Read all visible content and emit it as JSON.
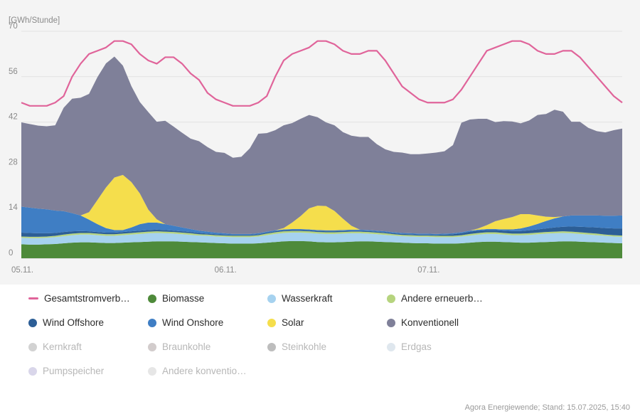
{
  "chart_data": {
    "type": "area",
    "ylabel": "[GWh/Stunde]",
    "ylim": [
      0,
      70
    ],
    "yticks": [
      0,
      14,
      28,
      42,
      56,
      70
    ],
    "x_tick_labels": [
      {
        "index": 0,
        "label": "05.11."
      },
      {
        "index": 24,
        "label": "06.11."
      },
      {
        "index": 48,
        "label": "07.11."
      }
    ],
    "hours": 72,
    "stack_order": [
      "Biomasse",
      "Wasserkraft",
      "Andere erneuerbare",
      "Wind Offshore",
      "Wind Onshore",
      "Solar",
      "Konventionell"
    ],
    "series": [
      {
        "name": "Biomasse",
        "color": "#4e8a3a",
        "values": [
          4.3,
          4.2,
          4.2,
          4.3,
          4.4,
          4.6,
          4.8,
          4.9,
          4.9,
          4.8,
          4.7,
          4.7,
          4.8,
          4.9,
          5.0,
          5.1,
          5.2,
          5.2,
          5.2,
          5.1,
          5.0,
          4.9,
          4.8,
          4.7,
          4.6,
          4.5,
          4.5,
          4.5,
          4.6,
          4.8,
          5.0,
          5.2,
          5.3,
          5.3,
          5.2,
          5.0,
          4.9,
          4.9,
          5.0,
          5.1,
          5.2,
          5.2,
          5.1,
          5.0,
          4.9,
          4.8,
          4.7,
          4.6,
          4.6,
          4.5,
          4.5,
          4.5,
          4.6,
          4.8,
          5.0,
          5.1,
          5.1,
          5.0,
          4.9,
          4.8,
          4.8,
          4.9,
          5.0,
          5.1,
          5.2,
          5.2,
          5.1,
          5.0,
          4.9,
          4.8,
          4.7,
          4.6
        ]
      },
      {
        "name": "Wasserkraft",
        "color": "#a6d2ef",
        "values": [
          2.0,
          2.0,
          2.0,
          2.0,
          2.1,
          2.2,
          2.3,
          2.4,
          2.4,
          2.3,
          2.2,
          2.2,
          2.3,
          2.4,
          2.5,
          2.6,
          2.6,
          2.5,
          2.4,
          2.3,
          2.2,
          2.1,
          2.1,
          2.0,
          2.0,
          2.0,
          2.0,
          2.0,
          2.1,
          2.3,
          2.5,
          2.6,
          2.6,
          2.6,
          2.6,
          2.6,
          2.6,
          2.6,
          2.6,
          2.6,
          2.5,
          2.4,
          2.3,
          2.2,
          2.1,
          2.0,
          2.0,
          2.0,
          2.0,
          2.0,
          2.0,
          2.0,
          2.1,
          2.2,
          2.3,
          2.4,
          2.4,
          2.3,
          2.2,
          2.3,
          2.4,
          2.5,
          2.6,
          2.6,
          2.6,
          2.5,
          2.4,
          2.3,
          2.2,
          2.1,
          2.0,
          2.0
        ]
      },
      {
        "name": "Andere erneuerbare",
        "color": "#b6d47e",
        "values": [
          0.4,
          0.4,
          0.4,
          0.4,
          0.4,
          0.5,
          0.5,
          0.5,
          0.5,
          0.5,
          0.5,
          0.5,
          0.5,
          0.5,
          0.5,
          0.5,
          0.5,
          0.5,
          0.5,
          0.5,
          0.5,
          0.4,
          0.4,
          0.4,
          0.4,
          0.4,
          0.4,
          0.4,
          0.4,
          0.5,
          0.5,
          0.5,
          0.5,
          0.5,
          0.5,
          0.5,
          0.5,
          0.5,
          0.5,
          0.5,
          0.5,
          0.5,
          0.5,
          0.5,
          0.4,
          0.4,
          0.4,
          0.4,
          0.4,
          0.4,
          0.4,
          0.4,
          0.4,
          0.5,
          0.5,
          0.5,
          0.5,
          0.5,
          0.5,
          0.5,
          0.5,
          0.5,
          0.5,
          0.5,
          0.5,
          0.5,
          0.5,
          0.5,
          0.5,
          0.4,
          0.4,
          0.4
        ]
      },
      {
        "name": "Wind Offshore",
        "color": "#2c5e96",
        "values": [
          1.2,
          1.2,
          1.1,
          1.0,
          0.9,
          0.8,
          0.7,
          0.6,
          0.5,
          0.5,
          0.5,
          0.5,
          0.5,
          0.5,
          0.5,
          0.5,
          0.5,
          0.5,
          0.4,
          0.4,
          0.4,
          0.4,
          0.3,
          0.3,
          0.3,
          0.3,
          0.3,
          0.3,
          0.3,
          0.3,
          0.3,
          0.3,
          0.3,
          0.3,
          0.3,
          0.3,
          0.3,
          0.3,
          0.3,
          0.3,
          0.3,
          0.3,
          0.3,
          0.3,
          0.3,
          0.3,
          0.3,
          0.3,
          0.3,
          0.3,
          0.4,
          0.5,
          0.6,
          0.7,
          0.7,
          0.7,
          0.7,
          0.7,
          0.8,
          0.8,
          0.9,
          1.0,
          1.1,
          1.3,
          1.4,
          1.6,
          1.7,
          1.8,
          1.9,
          2.0,
          2.1,
          2.2
        ]
      },
      {
        "name": "Wind Onshore",
        "color": "#3f7ec4",
        "values": [
          8.0,
          7.8,
          7.6,
          7.4,
          6.9,
          6.4,
          5.6,
          4.8,
          3.6,
          2.4,
          1.4,
          0.8,
          0.6,
          1.2,
          2.0,
          2.3,
          2.2,
          1.8,
          1.5,
          1.2,
          0.9,
          0.7,
          0.6,
          0.5,
          0.4,
          0.3,
          0.3,
          0.3,
          0.3,
          0.3,
          0.3,
          0.3,
          0.3,
          0.3,
          0.3,
          0.3,
          0.3,
          0.3,
          0.3,
          0.3,
          0.3,
          0.3,
          0.3,
          0.3,
          0.3,
          0.3,
          0.3,
          0.3,
          0.3,
          0.3,
          0.3,
          0.3,
          0.3,
          0.3,
          0.3,
          0.3,
          0.3,
          0.4,
          0.5,
          0.8,
          1.2,
          1.7,
          2.3,
          2.8,
          3.2,
          3.4,
          3.5,
          3.6,
          3.7,
          3.8,
          3.9,
          4.0
        ]
      },
      {
        "name": "Solar",
        "color": "#f5de4c",
        "values": [
          0,
          0,
          0,
          0,
          0,
          0,
          0,
          0,
          2.3,
          7.5,
          12.5,
          16.2,
          17.0,
          14.0,
          9.5,
          4.0,
          1.0,
          0,
          0,
          0,
          0,
          0,
          0,
          0,
          0,
          0,
          0,
          0,
          0,
          0,
          0,
          0.4,
          2.0,
          4.0,
          6.5,
          7.5,
          7.5,
          6.0,
          3.5,
          1.2,
          0,
          0,
          0,
          0,
          0,
          0,
          0,
          0,
          0,
          0,
          0,
          0,
          0,
          0,
          0.4,
          1.2,
          2.4,
          3.2,
          3.8,
          4.4,
          3.8,
          2.6,
          1.3,
          0.4,
          0,
          0,
          0,
          0,
          0,
          0,
          0,
          0
        ]
      },
      {
        "name": "Konventionell",
        "color": "#7f8099",
        "values": [
          26.0,
          25.8,
          25.6,
          25.6,
          26.3,
          31.9,
          35.3,
          36.3,
          36.5,
          37.9,
          38.3,
          37.3,
          33.7,
          29.6,
          28.2,
          30.1,
          30.1,
          31.9,
          30.6,
          29.2,
          27.9,
          27.6,
          26.1,
          24.9,
          24.8,
          23.5,
          23.8,
          26.4,
          30.7,
          30.4,
          30.9,
          31.7,
          30.7,
          30.0,
          28.8,
          27.3,
          25.8,
          26.4,
          26.7,
          27.8,
          28.6,
          28.7,
          26.7,
          25.3,
          24.8,
          24.8,
          24.4,
          24.5,
          24.7,
          25.1,
          25.4,
          27.2,
          33.8,
          34.3,
          33.8,
          32.8,
          30.6,
          30.2,
          29.5,
          28.0,
          28.9,
          31.0,
          31.7,
          33.1,
          32.3,
          28.9,
          28.9,
          27.0,
          26.0,
          25.7,
          26.4,
          26.8
        ]
      },
      {
        "name": "Gesamtstromverbrauch",
        "color": "#e0649a",
        "type": "line",
        "values": [
          48,
          47,
          47,
          47,
          48,
          50,
          56,
          60,
          63,
          64,
          65,
          67,
          67,
          66,
          63,
          61,
          60,
          62,
          62,
          60,
          57,
          55,
          51,
          49,
          48,
          47,
          47,
          47,
          48,
          50,
          56,
          61,
          63,
          64,
          65,
          67,
          67,
          66,
          64,
          63,
          63,
          64,
          64,
          61,
          57,
          53,
          51,
          49,
          48,
          48,
          48,
          49,
          52,
          56,
          60,
          64,
          65,
          66,
          67,
          67,
          66,
          64,
          63,
          63,
          64,
          64,
          62,
          59,
          56,
          53,
          50,
          48
        ]
      }
    ]
  },
  "legend": {
    "items": [
      {
        "label": "Gesamtstromverb…",
        "color": "#e0649a",
        "kind": "line",
        "active": true
      },
      {
        "label": "Biomasse",
        "color": "#4e8a3a",
        "kind": "dot",
        "active": true
      },
      {
        "label": "Wasserkraft",
        "color": "#a6d2ef",
        "kind": "dot",
        "active": true
      },
      {
        "label": "Andere erneuerb…",
        "color": "#b6d47e",
        "kind": "dot",
        "active": true
      },
      {
        "label": "Wind Offshore",
        "color": "#2c5e96",
        "kind": "dot",
        "active": true
      },
      {
        "label": "Wind Onshore",
        "color": "#3f7ec4",
        "kind": "dot",
        "active": true
      },
      {
        "label": "Solar",
        "color": "#f5de4c",
        "kind": "dot",
        "active": true
      },
      {
        "label": "Konventionell",
        "color": "#7f8099",
        "kind": "dot",
        "active": true
      },
      {
        "label": "Kernkraft",
        "color": "#d2d2d2",
        "kind": "dot",
        "active": false
      },
      {
        "label": "Braunkohle",
        "color": "#d2cccc",
        "kind": "dot",
        "active": false
      },
      {
        "label": "Steinkohle",
        "color": "#bdbdbd",
        "kind": "dot",
        "active": false
      },
      {
        "label": "Erdgas",
        "color": "#dfe7ee",
        "kind": "dot",
        "active": false
      },
      {
        "label": "Pumpspeicher",
        "color": "#d9d6ea",
        "kind": "dot",
        "active": false
      },
      {
        "label": "Andere konventio…",
        "color": "#e6e6e6",
        "kind": "dot",
        "active": false
      }
    ]
  },
  "source": "Agora Energiewende; Stand: 15.07.2025, 15:40"
}
